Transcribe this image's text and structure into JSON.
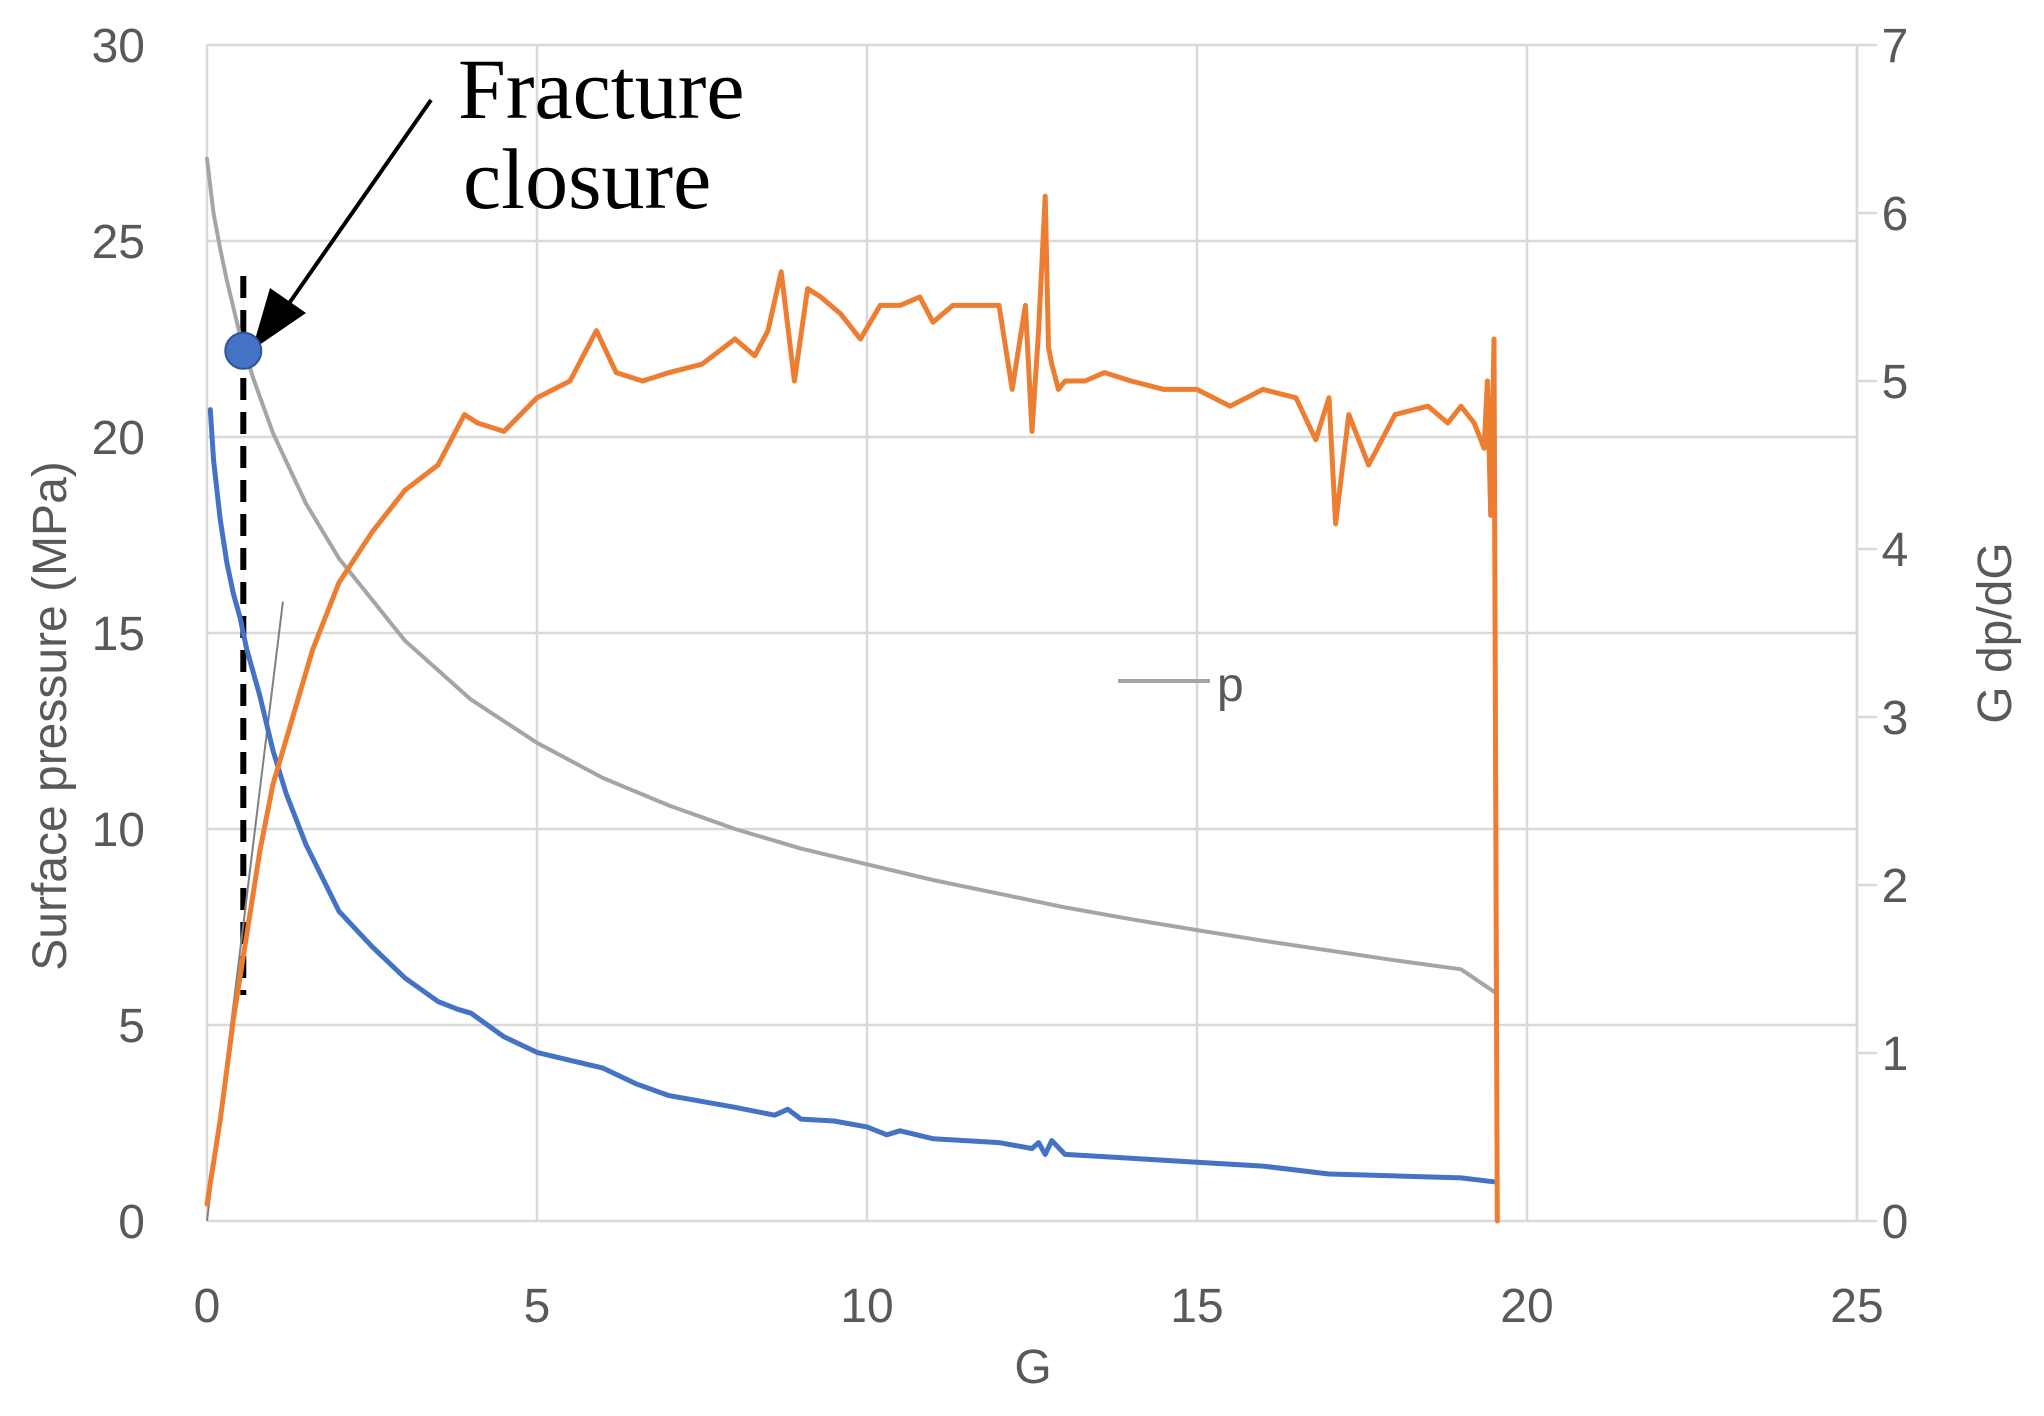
{
  "chart_data": {
    "type": "line",
    "xlabel": "G",
    "ylabel": "Surface pressure (MPa)",
    "y2label": "G dp/dG",
    "xlim": [
      0,
      25
    ],
    "ylim": [
      0,
      30
    ],
    "y2lim": [
      0,
      7
    ],
    "xticks": [
      0,
      5,
      10,
      15,
      20,
      25
    ],
    "yticks": [
      0,
      5,
      10,
      15,
      20,
      25,
      30
    ],
    "y2ticks": [
      0,
      1,
      2,
      3,
      4,
      5,
      6,
      7
    ],
    "grid": true,
    "legend": {
      "position": "center",
      "entries": [
        "p"
      ]
    },
    "colors": {
      "p": "#a5a5a5",
      "dpdg": "#4472c4",
      "gdpdg": "#ed7d31",
      "grid": "#d9d9d9",
      "axis_text": "#595959"
    },
    "series": [
      {
        "name": "p",
        "axis": "left",
        "x": [
          0,
          0.1,
          0.2,
          0.3,
          0.5,
          0.7,
          1,
          1.5,
          2,
          3,
          4,
          5,
          6,
          7,
          8,
          9,
          10,
          11,
          12,
          13,
          14,
          15,
          16,
          17,
          18,
          19,
          19.5
        ],
        "y": [
          27.1,
          25.7,
          24.8,
          24.0,
          22.6,
          21.5,
          20.1,
          18.3,
          16.9,
          14.8,
          13.3,
          12.2,
          11.3,
          10.6,
          10.0,
          9.5,
          9.1,
          8.7,
          8.35,
          8.0,
          7.7,
          7.42,
          7.15,
          6.9,
          6.65,
          6.42,
          5.85
        ]
      },
      {
        "axis": "left",
        "x": [
          0.05,
          0.1,
          0.2,
          0.3,
          0.4,
          0.5,
          0.6,
          0.8,
          1.0,
          1.2,
          1.5,
          2.0,
          2.5,
          3.0,
          3.5,
          3.8,
          4.0,
          4.5,
          5.0,
          5.5,
          6.0,
          6.5,
          7,
          8,
          8.6,
          8.8,
          9,
          9.5,
          10,
          10.3,
          10.5,
          11,
          12,
          12.5,
          12.6,
          12.7,
          12.8,
          13,
          14,
          15,
          16,
          17,
          18,
          19,
          19.5
        ],
        "y": [
          20.7,
          19.4,
          17.9,
          16.8,
          16.0,
          15.4,
          14.6,
          13.4,
          12.0,
          10.9,
          9.6,
          7.9,
          7.0,
          6.2,
          5.6,
          5.4,
          5.3,
          4.7,
          4.3,
          4.1,
          3.9,
          3.5,
          3.2,
          2.9,
          2.7,
          2.85,
          2.6,
          2.55,
          2.4,
          2.2,
          2.3,
          2.1,
          2.0,
          1.85,
          2.0,
          1.7,
          2.05,
          1.7,
          1.6,
          1.5,
          1.4,
          1.2,
          1.15,
          1.1,
          1.0
        ]
      },
      {
        "axis": "right",
        "x": [
          0,
          0.2,
          0.4,
          0.6,
          0.8,
          1.0,
          1.3,
          1.6,
          2.0,
          2.5,
          3.0,
          3.5,
          3.9,
          4.1,
          4.5,
          5.0,
          5.5,
          5.9,
          6.2,
          6.6,
          7,
          7.5,
          8.0,
          8.3,
          8.5,
          8.7,
          8.9,
          9.1,
          9.3,
          9.6,
          9.9,
          10.2,
          10.5,
          10.8,
          11,
          11.3,
          11.6,
          12.0,
          12.2,
          12.4,
          12.5,
          12.6,
          12.7,
          12.75,
          12.8,
          12.9,
          13.0,
          13.3,
          13.6,
          14,
          14.5,
          15,
          15.5,
          16,
          16.5,
          16.8,
          17.0,
          17.1,
          17.3,
          17.6,
          18.0,
          18.5,
          18.8,
          19.0,
          19.2,
          19.35,
          19.4,
          19.45,
          19.5,
          19.55
        ],
        "y": [
          0.1,
          0.6,
          1.2,
          1.7,
          2.2,
          2.6,
          3.0,
          3.4,
          3.8,
          4.1,
          4.35,
          4.5,
          4.8,
          4.75,
          4.7,
          4.9,
          5.0,
          5.3,
          5.05,
          5.0,
          5.05,
          5.1,
          5.25,
          5.15,
          5.3,
          5.65,
          5.0,
          5.55,
          5.5,
          5.4,
          5.25,
          5.45,
          5.45,
          5.5,
          5.35,
          5.45,
          5.45,
          5.45,
          4.95,
          5.45,
          4.7,
          5.3,
          6.1,
          5.2,
          5.1,
          4.95,
          5.0,
          5.0,
          5.05,
          5.0,
          4.95,
          4.95,
          4.85,
          4.95,
          4.9,
          4.65,
          4.9,
          4.15,
          4.8,
          4.5,
          4.8,
          4.85,
          4.75,
          4.85,
          4.75,
          4.6,
          5.0,
          4.2,
          5.25,
          0.0
        ]
      }
    ],
    "annotations": [
      {
        "text_line1": "Fracture",
        "text_line2": "closure",
        "x": 0.55,
        "y": 22.2
      }
    ],
    "reference_lines": [
      {
        "style": "dashed",
        "x": 0.55
      },
      {
        "style": "tangent",
        "from": [
          0,
          0
        ],
        "to": [
          1.15,
          15.8
        ]
      }
    ]
  }
}
